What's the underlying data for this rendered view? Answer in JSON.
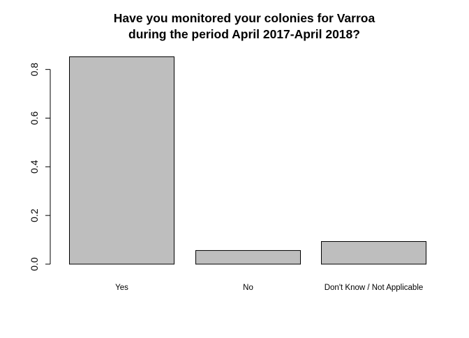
{
  "chart_data": {
    "type": "bar",
    "title_lines": [
      "Have you monitored your colonies for Varroa",
      "during the period April 2017-April 2018?"
    ],
    "categories": [
      "Yes",
      "No",
      "Don't Know / Not Applicable"
    ],
    "values": [
      0.852,
      0.056,
      0.093
    ],
    "xlabel": "",
    "ylabel": "",
    "ylim": [
      0,
      0.85
    ],
    "yticks": [
      "0.0",
      "0.2",
      "0.4",
      "0.6",
      "0.8"
    ],
    "bar_color": "#bebebe",
    "grid": false
  }
}
